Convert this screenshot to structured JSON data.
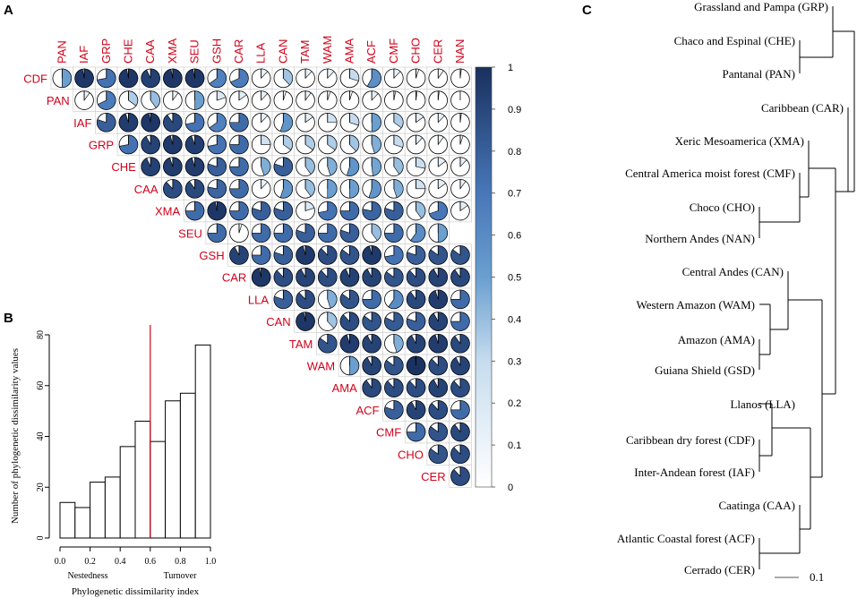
{
  "panels": {
    "a": "A",
    "b": "B",
    "c": "C"
  },
  "chart_data": [
    {
      "type": "heatmap",
      "subtype": "pie-correlation-matrix",
      "title": "",
      "col_labels": [
        "PAN",
        "IAF",
        "GRP",
        "CHE",
        "CAA",
        "XMA",
        "SEU",
        "GSH",
        "CAR",
        "LLA",
        "CAN",
        "TAM",
        "WAM",
        "AMA",
        "ACF",
        "CMF",
        "CHO",
        "CER",
        "NAN"
      ],
      "row_labels": [
        "CDF",
        "PAN",
        "IAF",
        "GRP",
        "CHE",
        "CAA",
        "XMA",
        "SEU",
        "GSH",
        "CAR",
        "LLA",
        "CAN",
        "TAM",
        "WAM",
        "AMA",
        "ACF",
        "CMF",
        "CHO",
        "CER"
      ],
      "colorbar": {
        "min": 0,
        "max": 1,
        "ticks": [
          "0",
          "0.1",
          "0.2",
          "0.3",
          "0.4",
          "0.5",
          "0.6",
          "0.7",
          "0.8",
          "0.9",
          "1"
        ]
      },
      "values": [
        [
          0.5,
          0.97,
          0.72,
          0.97,
          0.93,
          0.97,
          0.97,
          0.65,
          0.68,
          0.12,
          0.38,
          0.12,
          0.12,
          0.3,
          0.58,
          0.12,
          0.05,
          0.1,
          0.02
        ],
        [
          0.1,
          0.68,
          0.35,
          0.4,
          0.1,
          0.5,
          0.2,
          0.15,
          0.12,
          0.05,
          0.1,
          0.05,
          0.05,
          0.12,
          0.03,
          0.02,
          0.02,
          0.0
        ],
        [
          0.8,
          0.95,
          0.97,
          0.9,
          0.72,
          0.65,
          0.75,
          0.12,
          0.55,
          0.15,
          0.25,
          0.3,
          0.5,
          0.35,
          0.15,
          0.12,
          0.02
        ],
        [
          0.72,
          0.92,
          0.96,
          0.94,
          0.72,
          0.75,
          0.25,
          0.35,
          0.35,
          0.35,
          0.38,
          0.45,
          0.3,
          0.12,
          0.1,
          0.05
        ],
        [
          0.93,
          0.95,
          0.95,
          0.8,
          0.75,
          0.45,
          0.8,
          0.4,
          0.45,
          0.55,
          0.48,
          0.4,
          0.28,
          0.15,
          0.12
        ],
        [
          0.88,
          0.9,
          0.78,
          0.75,
          0.12,
          0.55,
          0.4,
          0.5,
          0.5,
          0.55,
          0.45,
          0.25,
          0.15,
          0.1
        ],
        [
          0.75,
          0.97,
          0.75,
          0.8,
          0.8,
          0.2,
          0.72,
          0.75,
          0.78,
          0.8,
          0.4,
          0.7,
          0.15
        ],
        [
          0.75,
          0.05,
          0.75,
          0.75,
          0.8,
          0.75,
          0.8,
          0.4,
          0.75,
          0.6,
          0.5
        ],
        [
          0.92,
          0.75,
          0.8,
          0.96,
          0.88,
          0.85,
          0.96,
          0.72,
          0.8,
          0.85,
          0.85
        ],
        [
          0.97,
          0.88,
          0.92,
          0.88,
          0.93,
          0.92,
          0.85,
          0.88,
          0.92,
          0.9
        ],
        [
          0.8,
          0.88,
          0.45,
          0.85,
          0.75,
          0.6,
          0.9,
          0.95,
          0.75
        ],
        [
          0.97,
          0.38,
          0.88,
          0.85,
          0.82,
          0.8,
          0.92,
          0.75
        ],
        [
          0.85,
          0.95,
          0.92,
          0.45,
          0.92,
          0.95,
          0.9
        ],
        [
          0.5,
          0.92,
          0.85,
          0.99,
          0.88,
          0.92
        ],
        [
          0.9,
          0.88,
          0.88,
          0.92,
          0.88
        ],
        [
          0.8,
          0.92,
          0.88,
          0.75
        ],
        [
          0.75,
          0.85,
          0.9
        ],
        [
          0.85,
          0.88
        ],
        [
          0.88
        ]
      ]
    },
    {
      "type": "bar",
      "subtype": "histogram",
      "title": "",
      "xlabel": "Phylogenetic dissimilarity index",
      "ylabel": "Number of phylogenetic dissimilarity values",
      "xlim": [
        0,
        1
      ],
      "ylim": [
        0,
        80
      ],
      "bin_edges": [
        0.0,
        0.1,
        0.2,
        0.3,
        0.4,
        0.5,
        0.6,
        0.7,
        0.8,
        0.9,
        1.0
      ],
      "values": [
        14,
        12,
        22,
        24,
        36,
        46,
        38,
        54,
        57,
        76
      ],
      "xticks": [
        "0.0",
        "0.2",
        "0.4",
        "0.6",
        "0.8",
        "1.0"
      ],
      "yticks": [
        "0",
        "20",
        "40",
        "60",
        "80"
      ],
      "vline": {
        "x": 0.6,
        "color": "#d0021b"
      },
      "annotations": [
        "Nestedness",
        "Turnover"
      ]
    },
    {
      "type": "dendrogram",
      "title": "",
      "leaves": [
        "Grassland and Pampa (GRP)",
        "Chaco and Espinal (CHE)",
        "Pantanal (PAN)",
        "Caribbean (CAR)",
        "Xeric Mesoamerica (XMA)",
        "Central America moist forest (CMF)",
        "Choco (CHO)",
        "Northern Andes (NAN)",
        "Central Andes (CAN)",
        "Western Amazon (WAM)",
        "Amazon (AMA)",
        "Guiana Shield (GSD)",
        "Llanos (LLA)",
        "Caribbean dry forest (CDF)",
        "Inter-Andean forest  (IAF)",
        "Caatinga (CAA)",
        "Atlantic Coastal forest (ACF)",
        "Cerrado (CER)"
      ],
      "scale_bar": "0.1"
    }
  ]
}
